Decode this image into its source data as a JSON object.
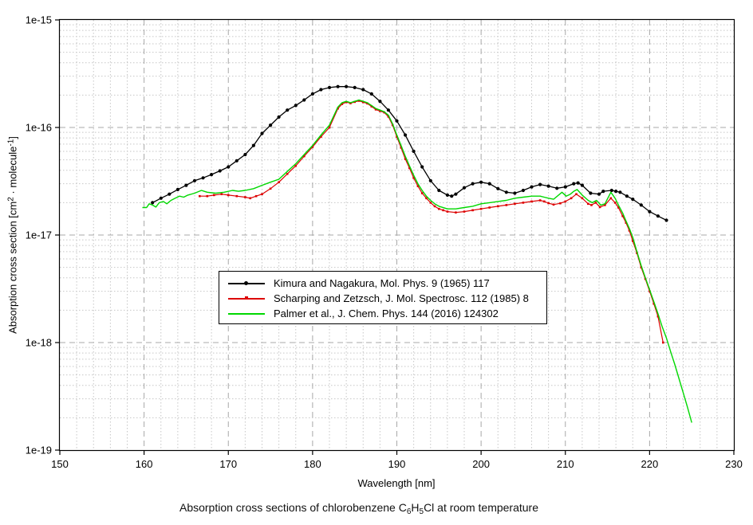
{
  "window": {
    "background": "#ffffff"
  },
  "chart_data": {
    "type": "line",
    "title_parts": [
      {
        "text": "Absorption cross sections of chlorobenzene C"
      },
      {
        "sub": "6"
      },
      {
        "text": "H"
      },
      {
        "sub": "5"
      },
      {
        "text": "Cl at room temperature"
      }
    ],
    "xlabel": "Wavelength [nm]",
    "ylabel_parts": [
      {
        "text": "Absorption cross section [cm"
      },
      {
        "sup": "2"
      },
      {
        "text": " · molecule"
      },
      {
        "sup": "-1"
      },
      {
        "text": "]"
      }
    ],
    "x_axis": {
      "min": 150,
      "max": 230,
      "unit": "nm",
      "major_ticks": [
        150,
        160,
        170,
        180,
        190,
        200,
        210,
        220,
        230
      ],
      "minor_step": 2
    },
    "y_axis": {
      "scale": "log",
      "min": 1e-19,
      "max": 1e-15,
      "major_tick_labels": [
        "1e-15",
        "1e-16",
        "1e-17",
        "1e-18",
        "1e-19"
      ],
      "major_tick_values": [
        1e-15,
        1e-16,
        1e-17,
        1e-18,
        1e-19
      ]
    },
    "grid": {
      "show": true,
      "major_style": "dashed",
      "minor_style": "dotted",
      "major_color": "#a8a8a8",
      "minor_color": "#c6c6c6"
    },
    "legend": {
      "position": "inside-center-left",
      "border_color": "#000000",
      "background": "#ffffff"
    },
    "series": [
      {
        "key": "kimura",
        "name": "Kimura and Nagakura, Mol. Phys. 9 (1965) 117",
        "color": "#000000",
        "marker": "circle",
        "line_width": 1.3,
        "points": [
          [
            161,
            2e-17
          ],
          [
            162,
            2.2e-17
          ],
          [
            163,
            2.4e-17
          ],
          [
            164,
            2.65e-17
          ],
          [
            165,
            2.9e-17
          ],
          [
            166,
            3.2e-17
          ],
          [
            167,
            3.4e-17
          ],
          [
            168,
            3.65e-17
          ],
          [
            169,
            3.95e-17
          ],
          [
            170,
            4.3e-17
          ],
          [
            171,
            4.9e-17
          ],
          [
            172,
            5.6e-17
          ],
          [
            173,
            6.8e-17
          ],
          [
            174,
            8.8e-17
          ],
          [
            175,
            1.05e-16
          ],
          [
            176,
            1.25e-16
          ],
          [
            177,
            1.45e-16
          ],
          [
            178,
            1.6e-16
          ],
          [
            179,
            1.8e-16
          ],
          [
            180,
            2.05e-16
          ],
          [
            181,
            2.25e-16
          ],
          [
            182,
            2.35e-16
          ],
          [
            183,
            2.4e-16
          ],
          [
            184,
            2.4e-16
          ],
          [
            185,
            2.35e-16
          ],
          [
            186,
            2.25e-16
          ],
          [
            187,
            2.05e-16
          ],
          [
            188,
            1.75e-16
          ],
          [
            189,
            1.45e-16
          ],
          [
            190,
            1.15e-16
          ],
          [
            191,
            8.5e-17
          ],
          [
            192,
            6e-17
          ],
          [
            193,
            4.3e-17
          ],
          [
            194,
            3.2e-17
          ],
          [
            195,
            2.6e-17
          ],
          [
            196,
            2.35e-17
          ],
          [
            196.5,
            2.3e-17
          ],
          [
            197,
            2.4e-17
          ],
          [
            198,
            2.75e-17
          ],
          [
            199,
            3e-17
          ],
          [
            200,
            3.1e-17
          ],
          [
            201,
            3e-17
          ],
          [
            202,
            2.7e-17
          ],
          [
            203,
            2.5e-17
          ],
          [
            204,
            2.45e-17
          ],
          [
            205,
            2.6e-17
          ],
          [
            206,
            2.8e-17
          ],
          [
            207,
            2.95e-17
          ],
          [
            208,
            2.85e-17
          ],
          [
            209,
            2.72e-17
          ],
          [
            210,
            2.8e-17
          ],
          [
            211,
            3e-17
          ],
          [
            211.5,
            3.05e-17
          ],
          [
            212,
            2.9e-17
          ],
          [
            213,
            2.45e-17
          ],
          [
            214,
            2.4e-17
          ],
          [
            214.5,
            2.55e-17
          ],
          [
            215.5,
            2.6e-17
          ],
          [
            216,
            2.55e-17
          ],
          [
            216.5,
            2.5e-17
          ],
          [
            217.3,
            2.3e-17
          ],
          [
            218,
            2.15e-17
          ],
          [
            219,
            1.9e-17
          ],
          [
            220,
            1.65e-17
          ],
          [
            221,
            1.5e-17
          ],
          [
            222,
            1.37e-17
          ]
        ]
      },
      {
        "key": "scharping",
        "name": "Scharping and Zetzsch, J. Mol. Spectrosc. 112 (1985) 8",
        "color": "#dd0000",
        "marker": "square",
        "line_width": 1.2,
        "points": [
          [
            166.6,
            2.3e-17
          ],
          [
            167.5,
            2.3e-17
          ],
          [
            168.3,
            2.35e-17
          ],
          [
            169.2,
            2.4e-17
          ],
          [
            170,
            2.35e-17
          ],
          [
            171,
            2.3e-17
          ],
          [
            172,
            2.25e-17
          ],
          [
            172.6,
            2.2e-17
          ],
          [
            173.3,
            2.3e-17
          ],
          [
            174,
            2.4e-17
          ],
          [
            175,
            2.7e-17
          ],
          [
            176,
            3.1e-17
          ],
          [
            177,
            3.7e-17
          ],
          [
            178,
            4.4e-17
          ],
          [
            179,
            5.4e-17
          ],
          [
            180,
            6.6e-17
          ],
          [
            181,
            8.2e-17
          ],
          [
            182,
            1e-16
          ],
          [
            183,
            1.5e-16
          ],
          [
            183.5,
            1.65e-16
          ],
          [
            184,
            1.72e-16
          ],
          [
            184.5,
            1.68e-16
          ],
          [
            185,
            1.73e-16
          ],
          [
            185.5,
            1.77e-16
          ],
          [
            186,
            1.72e-16
          ],
          [
            186.5,
            1.67e-16
          ],
          [
            187,
            1.57e-16
          ],
          [
            187.5,
            1.47e-16
          ],
          [
            188,
            1.42e-16
          ],
          [
            188.5,
            1.38e-16
          ],
          [
            189,
            1.26e-16
          ],
          [
            189.5,
            1.05e-16
          ],
          [
            190,
            8.2e-17
          ],
          [
            190.5,
            6.5e-17
          ],
          [
            191,
            5.1e-17
          ],
          [
            191.5,
            4.2e-17
          ],
          [
            192,
            3.4e-17
          ],
          [
            192.5,
            2.85e-17
          ],
          [
            193,
            2.45e-17
          ],
          [
            193.5,
            2.2e-17
          ],
          [
            194,
            2e-17
          ],
          [
            194.5,
            1.85e-17
          ],
          [
            195,
            1.75e-17
          ],
          [
            195.5,
            1.7e-17
          ],
          [
            196,
            1.65e-17
          ],
          [
            197,
            1.62e-17
          ],
          [
            198,
            1.65e-17
          ],
          [
            199,
            1.7e-17
          ],
          [
            200,
            1.75e-17
          ],
          [
            201,
            1.8e-17
          ],
          [
            202,
            1.85e-17
          ],
          [
            203,
            1.9e-17
          ],
          [
            204,
            1.95e-17
          ],
          [
            205,
            2e-17
          ],
          [
            206,
            2.05e-17
          ],
          [
            207,
            2.1e-17
          ],
          [
            207.5,
            2.05e-17
          ],
          [
            208,
            1.98e-17
          ],
          [
            208.6,
            1.92e-17
          ],
          [
            209.4,
            1.97e-17
          ],
          [
            210,
            2.05e-17
          ],
          [
            210.7,
            2.2e-17
          ],
          [
            211.3,
            2.4e-17
          ],
          [
            212,
            2.2e-17
          ],
          [
            212.7,
            1.95e-17
          ],
          [
            213.1,
            1.9e-17
          ],
          [
            213.6,
            2e-17
          ],
          [
            214.1,
            1.82e-17
          ],
          [
            214.7,
            1.9e-17
          ],
          [
            215.4,
            2.2e-17
          ],
          [
            215.9,
            2e-17
          ],
          [
            216.3,
            1.8e-17
          ],
          [
            216.8,
            1.5e-17
          ],
          [
            217.2,
            1.3e-17
          ],
          [
            217.6,
            1.1e-17
          ],
          [
            218,
            8.8e-18
          ],
          [
            218.5,
            6.8e-18
          ],
          [
            219,
            5e-18
          ],
          [
            219.5,
            3.9e-18
          ],
          [
            220,
            3e-18
          ],
          [
            220.5,
            2.3e-18
          ],
          [
            221,
            1.75e-18
          ],
          [
            221.6,
            1e-18
          ]
        ]
      },
      {
        "key": "palmer",
        "name": "Palmer et al., J. Chem. Phys. 144 (2016) 124302",
        "color": "#00d800",
        "marker": "none",
        "line_width": 1.4,
        "points": [
          [
            159.8,
            1.8e-17
          ],
          [
            160.3,
            1.8e-17
          ],
          [
            160.6,
            1.95e-17
          ],
          [
            161,
            1.9e-17
          ],
          [
            161.4,
            1.82e-17
          ],
          [
            161.8,
            2e-17
          ],
          [
            162.3,
            2.05e-17
          ],
          [
            162.7,
            1.95e-17
          ],
          [
            163.2,
            2.1e-17
          ],
          [
            163.7,
            2.2e-17
          ],
          [
            164.2,
            2.3e-17
          ],
          [
            164.7,
            2.25e-17
          ],
          [
            165.2,
            2.35e-17
          ],
          [
            166,
            2.45e-17
          ],
          [
            166.8,
            2.6e-17
          ],
          [
            167.5,
            2.5e-17
          ],
          [
            168.5,
            2.45e-17
          ],
          [
            169.5,
            2.5e-17
          ],
          [
            170.5,
            2.6e-17
          ],
          [
            171.2,
            2.55e-17
          ],
          [
            172,
            2.6e-17
          ],
          [
            173,
            2.7e-17
          ],
          [
            174,
            2.9e-17
          ],
          [
            175,
            3.1e-17
          ],
          [
            176,
            3.3e-17
          ],
          [
            177,
            3.9e-17
          ],
          [
            178,
            4.6e-17
          ],
          [
            179,
            5.6e-17
          ],
          [
            180,
            6.8e-17
          ],
          [
            181,
            8.5e-17
          ],
          [
            182,
            1.05e-16
          ],
          [
            183,
            1.55e-16
          ],
          [
            183.5,
            1.7e-16
          ],
          [
            184,
            1.75e-16
          ],
          [
            184.5,
            1.7e-16
          ],
          [
            185,
            1.75e-16
          ],
          [
            185.5,
            1.8e-16
          ],
          [
            186,
            1.75e-16
          ],
          [
            186.5,
            1.7e-16
          ],
          [
            187,
            1.6e-16
          ],
          [
            187.5,
            1.5e-16
          ],
          [
            188,
            1.45e-16
          ],
          [
            188.5,
            1.4e-16
          ],
          [
            189,
            1.3e-16
          ],
          [
            189.5,
            1.08e-16
          ],
          [
            190,
            8.5e-17
          ],
          [
            190.5,
            6.8e-17
          ],
          [
            191,
            5.4e-17
          ],
          [
            191.5,
            4.4e-17
          ],
          [
            192,
            3.6e-17
          ],
          [
            192.5,
            3e-17
          ],
          [
            193,
            2.6e-17
          ],
          [
            193.5,
            2.3e-17
          ],
          [
            194,
            2.1e-17
          ],
          [
            194.5,
            1.95e-17
          ],
          [
            195,
            1.85e-17
          ],
          [
            196,
            1.75e-17
          ],
          [
            197,
            1.75e-17
          ],
          [
            198,
            1.8e-17
          ],
          [
            199,
            1.85e-17
          ],
          [
            200,
            1.95e-17
          ],
          [
            201,
            2e-17
          ],
          [
            202,
            2.05e-17
          ],
          [
            203,
            2.1e-17
          ],
          [
            204,
            2.2e-17
          ],
          [
            205,
            2.25e-17
          ],
          [
            206,
            2.3e-17
          ],
          [
            207,
            2.3e-17
          ],
          [
            207.5,
            2.25e-17
          ],
          [
            208,
            2.2e-17
          ],
          [
            208.6,
            2.15e-17
          ],
          [
            209.6,
            2.5e-17
          ],
          [
            210.1,
            2.3e-17
          ],
          [
            210.6,
            2.4e-17
          ],
          [
            211,
            2.55e-17
          ],
          [
            211.4,
            2.65e-17
          ],
          [
            212,
            2.35e-17
          ],
          [
            212.7,
            2.1e-17
          ],
          [
            213.2,
            2e-17
          ],
          [
            213.7,
            2.1e-17
          ],
          [
            214.2,
            1.9e-17
          ],
          [
            214.7,
            1.95e-17
          ],
          [
            215.4,
            2.5e-17
          ],
          [
            215.9,
            2.2e-17
          ],
          [
            216.3,
            1.9e-17
          ],
          [
            216.8,
            1.6e-17
          ],
          [
            217.2,
            1.35e-17
          ],
          [
            217.6,
            1.15e-17
          ],
          [
            218,
            9.5e-18
          ],
          [
            218.5,
            7e-18
          ],
          [
            219,
            5.2e-18
          ],
          [
            219.5,
            4e-18
          ],
          [
            220,
            3.1e-18
          ],
          [
            220.5,
            2.4e-18
          ],
          [
            221,
            1.85e-18
          ],
          [
            221.5,
            1.4e-18
          ],
          [
            222,
            1.1e-18
          ],
          [
            222.5,
            8.2e-19
          ],
          [
            223,
            6.2e-19
          ],
          [
            223.5,
            4.6e-19
          ],
          [
            224,
            3.4e-19
          ],
          [
            224.5,
            2.5e-19
          ],
          [
            225,
            1.8e-19
          ]
        ]
      }
    ]
  }
}
